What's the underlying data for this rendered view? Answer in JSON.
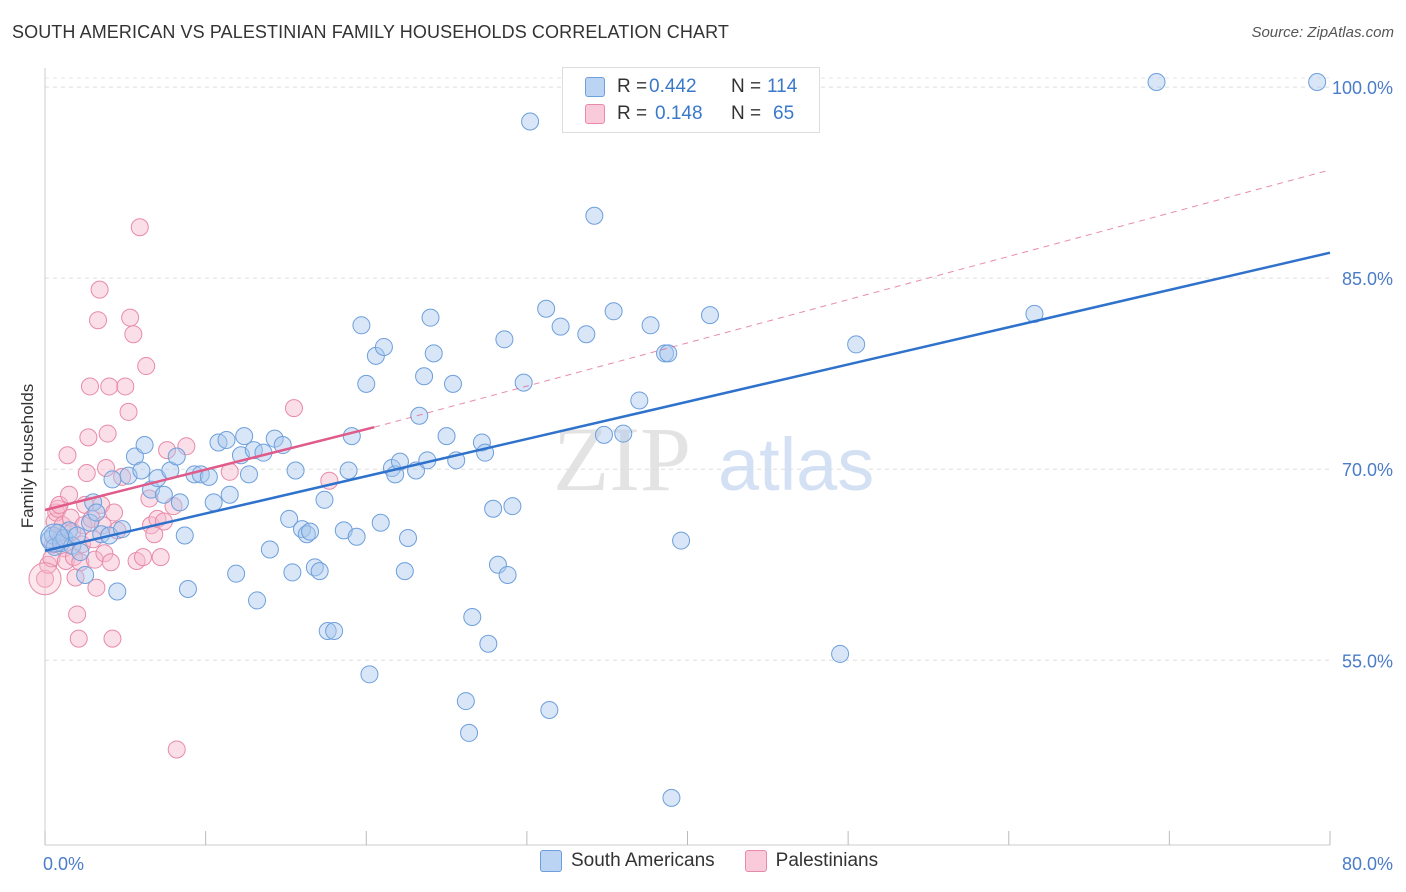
{
  "title": "SOUTH AMERICAN VS PALESTINIAN FAMILY HOUSEHOLDS CORRELATION CHART",
  "source": "Source: ZipAtlas.com",
  "watermark": {
    "zip": "ZIP",
    "atlas": "atlas"
  },
  "legend": {
    "r_label": "R =",
    "n_label": "N =",
    "rows": [
      {
        "r": "0.442",
        "n": "114"
      },
      {
        "r": "0.148",
        "n": "65"
      }
    ]
  },
  "colors": {
    "blue_fill": "#a9c7ee",
    "blue_stroke": "#6d9fdc",
    "blue_line": "#2f72cc",
    "pink_fill": "#f6b9cc",
    "pink_stroke": "#e88aa8",
    "pink_line": "#e05a8a",
    "axis_text": "#4a7cc7"
  },
  "chart_data": {
    "type": "scatter",
    "title": "SOUTH AMERICAN VS PALESTINIAN FAMILY HOUSEHOLDS CORRELATION CHART",
    "xlabel": "",
    "ylabel": "Family Households",
    "xlim": [
      0,
      80
    ],
    "ylim": [
      40.5,
      101.5
    ],
    "x_ticks": [
      0,
      80
    ],
    "x_tick_labels": [
      "0.0%",
      "80.0%"
    ],
    "y_ticks": [
      55,
      70,
      85,
      100
    ],
    "y_tick_labels": [
      "55.0%",
      "70.0%",
      "85.0%",
      "100.0%"
    ],
    "grid": true,
    "series": [
      {
        "name": "South Americans",
        "R": 0.442,
        "N": 114,
        "trend": {
          "x": [
            0,
            80
          ],
          "y": [
            63.6,
            87.0
          ],
          "style": "solid"
        },
        "points": [
          [
            0.3,
            64.5
          ],
          [
            0.5,
            64.8
          ],
          [
            0.6,
            63.9
          ],
          [
            0.8,
            65.0
          ],
          [
            1.0,
            64.2
          ],
          [
            1.2,
            64.6
          ],
          [
            1.5,
            65.2
          ],
          [
            1.7,
            64.0
          ],
          [
            2.0,
            64.8
          ],
          [
            2.2,
            63.5
          ],
          [
            2.5,
            61.7
          ],
          [
            2.8,
            65.8
          ],
          [
            3.0,
            67.4
          ],
          [
            3.2,
            66.6
          ],
          [
            3.5,
            64.9
          ],
          [
            4.0,
            64.8
          ],
          [
            4.2,
            69.2
          ],
          [
            4.5,
            60.4
          ],
          [
            4.8,
            65.3
          ],
          [
            5.2,
            69.5
          ],
          [
            5.6,
            71.0
          ],
          [
            6.0,
            69.9
          ],
          [
            6.2,
            71.9
          ],
          [
            6.6,
            68.4
          ],
          [
            7.0,
            69.3
          ],
          [
            7.4,
            68.0
          ],
          [
            7.8,
            69.9
          ],
          [
            8.2,
            71.0
          ],
          [
            8.4,
            67.4
          ],
          [
            8.7,
            64.8
          ],
          [
            8.9,
            60.6
          ],
          [
            9.3,
            69.6
          ],
          [
            9.7,
            69.6
          ],
          [
            10.2,
            69.4
          ],
          [
            10.5,
            67.4
          ],
          [
            10.8,
            72.1
          ],
          [
            11.3,
            72.3
          ],
          [
            11.5,
            68.0
          ],
          [
            11.9,
            61.8
          ],
          [
            12.2,
            71.1
          ],
          [
            12.4,
            72.6
          ],
          [
            12.7,
            69.6
          ],
          [
            13.0,
            71.5
          ],
          [
            13.2,
            59.7
          ],
          [
            13.6,
            71.3
          ],
          [
            14.0,
            63.7
          ],
          [
            14.3,
            72.4
          ],
          [
            14.8,
            71.9
          ],
          [
            15.2,
            66.1
          ],
          [
            15.4,
            61.9
          ],
          [
            15.6,
            69.9
          ],
          [
            16.0,
            65.3
          ],
          [
            16.3,
            64.9
          ],
          [
            16.5,
            65.1
          ],
          [
            16.8,
            62.3
          ],
          [
            17.1,
            62.0
          ],
          [
            17.4,
            67.6
          ],
          [
            17.6,
            57.3
          ],
          [
            18.0,
            57.3
          ],
          [
            18.6,
            65.2
          ],
          [
            18.9,
            69.9
          ],
          [
            19.1,
            72.6
          ],
          [
            19.4,
            64.7
          ],
          [
            19.7,
            81.3
          ],
          [
            20.0,
            76.7
          ],
          [
            20.2,
            53.9
          ],
          [
            20.6,
            78.9
          ],
          [
            20.9,
            65.8
          ],
          [
            21.1,
            79.6
          ],
          [
            21.6,
            70.1
          ],
          [
            21.8,
            69.6
          ],
          [
            22.1,
            70.6
          ],
          [
            22.4,
            62.0
          ],
          [
            22.6,
            64.6
          ],
          [
            23.1,
            69.9
          ],
          [
            23.3,
            74.2
          ],
          [
            23.6,
            77.3
          ],
          [
            23.8,
            70.7
          ],
          [
            24.0,
            81.9
          ],
          [
            24.2,
            79.1
          ],
          [
            25.0,
            72.6
          ],
          [
            25.4,
            76.7
          ],
          [
            25.6,
            70.7
          ],
          [
            26.2,
            51.8
          ],
          [
            26.4,
            49.3
          ],
          [
            26.6,
            58.4
          ],
          [
            27.2,
            72.1
          ],
          [
            27.4,
            71.3
          ],
          [
            27.6,
            56.3
          ],
          [
            27.9,
            66.9
          ],
          [
            28.2,
            62.5
          ],
          [
            28.6,
            80.2
          ],
          [
            28.8,
            61.7
          ],
          [
            29.1,
            67.1
          ],
          [
            29.8,
            76.8
          ],
          [
            30.2,
            97.3
          ],
          [
            31.2,
            82.6
          ],
          [
            31.4,
            51.1
          ],
          [
            32.1,
            81.2
          ],
          [
            33.7,
            80.6
          ],
          [
            34.2,
            89.9
          ],
          [
            34.8,
            72.7
          ],
          [
            35.4,
            82.4
          ],
          [
            36.0,
            72.8
          ],
          [
            37.0,
            75.4
          ],
          [
            37.7,
            81.3
          ],
          [
            38.6,
            79.1
          ],
          [
            38.8,
            79.1
          ],
          [
            39.0,
            44.2
          ],
          [
            39.6,
            64.4
          ],
          [
            41.4,
            82.1
          ],
          [
            49.5,
            55.5
          ],
          [
            50.5,
            79.8
          ],
          [
            61.6,
            82.2
          ],
          [
            69.2,
            100.4
          ],
          [
            79.2,
            100.4
          ]
        ]
      },
      {
        "name": "Palestinians",
        "R": 0.148,
        "N": 65,
        "trend": {
          "x": [
            0,
            20.5
          ],
          "y": [
            66.8,
            73.3
          ],
          "style": "solid"
        },
        "trend_extended": {
          "x": [
            20.5,
            80
          ],
          "y": [
            73.3,
            93.5
          ],
          "style": "dashed"
        },
        "points": [
          [
            0.0,
            61.4
          ],
          [
            0.2,
            62.5
          ],
          [
            0.4,
            63.0
          ],
          [
            0.5,
            64.1
          ],
          [
            0.6,
            65.9
          ],
          [
            0.7,
            66.6
          ],
          [
            0.8,
            66.9
          ],
          [
            0.9,
            67.2
          ],
          [
            1.0,
            64.6
          ],
          [
            1.1,
            65.6
          ],
          [
            1.2,
            63.8
          ],
          [
            1.3,
            62.8
          ],
          [
            1.4,
            71.1
          ],
          [
            1.5,
            68.0
          ],
          [
            1.6,
            66.2
          ],
          [
            1.7,
            65.1
          ],
          [
            1.8,
            63.1
          ],
          [
            1.9,
            61.5
          ],
          [
            2.0,
            58.6
          ],
          [
            2.1,
            56.7
          ],
          [
            2.2,
            62.7
          ],
          [
            2.3,
            64.1
          ],
          [
            2.4,
            65.6
          ],
          [
            2.5,
            67.2
          ],
          [
            2.6,
            69.7
          ],
          [
            2.7,
            72.5
          ],
          [
            2.8,
            76.5
          ],
          [
            2.9,
            66.1
          ],
          [
            3.0,
            64.5
          ],
          [
            3.1,
            62.9
          ],
          [
            3.2,
            60.7
          ],
          [
            3.3,
            81.7
          ],
          [
            3.4,
            84.1
          ],
          [
            3.5,
            67.2
          ],
          [
            3.6,
            65.6
          ],
          [
            3.7,
            63.4
          ],
          [
            3.8,
            70.1
          ],
          [
            3.9,
            72.8
          ],
          [
            4.0,
            76.5
          ],
          [
            4.1,
            62.7
          ],
          [
            4.2,
            56.7
          ],
          [
            4.3,
            66.6
          ],
          [
            4.5,
            65.2
          ],
          [
            4.8,
            69.4
          ],
          [
            5.0,
            76.5
          ],
          [
            5.2,
            74.5
          ],
          [
            5.3,
            81.9
          ],
          [
            5.5,
            80.6
          ],
          [
            5.7,
            62.8
          ],
          [
            5.9,
            89.0
          ],
          [
            6.1,
            63.1
          ],
          [
            6.3,
            78.1
          ],
          [
            6.5,
            67.7
          ],
          [
            6.6,
            65.6
          ],
          [
            6.8,
            64.9
          ],
          [
            7.0,
            66.1
          ],
          [
            7.2,
            63.1
          ],
          [
            7.4,
            65.9
          ],
          [
            7.6,
            71.5
          ],
          [
            8.0,
            67.1
          ],
          [
            8.2,
            48.0
          ],
          [
            8.8,
            71.8
          ],
          [
            11.5,
            69.8
          ],
          [
            15.5,
            74.8
          ],
          [
            17.7,
            69.1
          ]
        ]
      }
    ]
  }
}
